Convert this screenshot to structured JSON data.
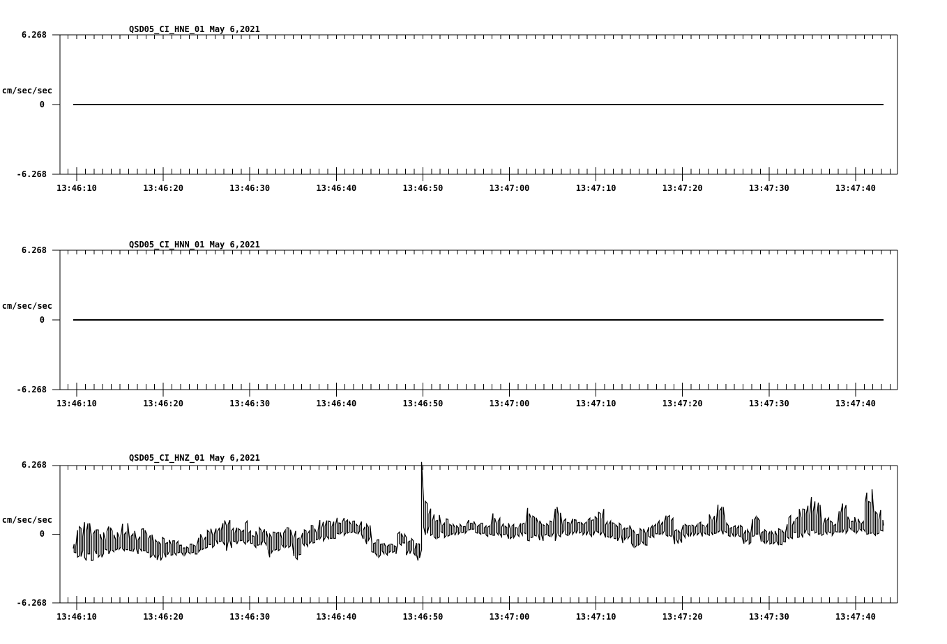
{
  "app": {
    "kind": "seismic waveform display",
    "background_color": "#ffffff",
    "foreground_color": "#000000"
  },
  "time_axis": {
    "tick_labels": [
      "13:46:10",
      "13:46:20",
      "13:46:30",
      "13:46:40",
      "13:46:50",
      "13:47:00",
      "13:47:10",
      "13:47:20",
      "13:47:30",
      "13:47:40"
    ],
    "tick_seconds": [
      0,
      10,
      20,
      30,
      40,
      50,
      60,
      70,
      80,
      90
    ],
    "minor_tick_interval_seconds": 1
  },
  "panels": [
    {
      "channel": "HNE",
      "title": "QSD05_CI_HNE_01  May 6,2021",
      "y_axis": {
        "top_label": "6.268",
        "zero_label": "0",
        "bottom_label": "-6.268",
        "units_label": "cm/sec/sec"
      }
    },
    {
      "channel": "HNN",
      "title": "QSD05_CI_HNN_01  May 6,2021",
      "y_axis": {
        "top_label": "6.268",
        "zero_label": "0",
        "bottom_label": "-6.268",
        "units_label": "cm/sec/sec"
      }
    },
    {
      "channel": "HNZ",
      "title": "QSD05_CI_HNZ_01  May 6,2021",
      "y_axis": {
        "top_label": "6.268",
        "zero_label": "0",
        "bottom_label": "-6.268",
        "units_label": "cm/sec/sec"
      }
    }
  ],
  "chart_data": [
    {
      "type": "line",
      "title": "QSD05_CI_HNE_01  May 6,2021",
      "ylabel": "cm/sec/sec",
      "ylim": [
        -6.268,
        6.268
      ],
      "yticks": [
        -6.268,
        0,
        6.268
      ],
      "x_tick_labels": [
        "13:46:10",
        "13:46:20",
        "13:46:30",
        "13:46:40",
        "13:46:50",
        "13:47:00",
        "13:47:10",
        "13:47:20",
        "13:47:30",
        "13:47:40"
      ],
      "x_start": "13:46:09.6",
      "x_end": "13:47:43.2",
      "series": [
        {
          "name": "HNE",
          "constant_value": 0
        }
      ]
    },
    {
      "type": "line",
      "title": "QSD05_CI_HNN_01  May 6,2021",
      "ylabel": "cm/sec/sec",
      "ylim": [
        -6.268,
        6.268
      ],
      "yticks": [
        -6.268,
        0,
        6.268
      ],
      "x_tick_labels": [
        "13:46:10",
        "13:46:20",
        "13:46:30",
        "13:46:40",
        "13:46:50",
        "13:47:00",
        "13:47:10",
        "13:47:20",
        "13:47:30",
        "13:47:40"
      ],
      "x_start": "13:46:09.6",
      "x_end": "13:47:43.2",
      "series": [
        {
          "name": "HNN",
          "constant_value": 0
        }
      ]
    },
    {
      "type": "line",
      "title": "QSD05_CI_HNZ_01  May 6,2021",
      "ylabel": "cm/sec/sec",
      "ylim": [
        -6.268,
        6.268
      ],
      "yticks": [
        -6.268,
        0,
        6.268
      ],
      "x_tick_labels": [
        "13:46:10",
        "13:46:20",
        "13:46:30",
        "13:46:40",
        "13:46:50",
        "13:47:00",
        "13:47:10",
        "13:47:20",
        "13:47:30",
        "13:47:40"
      ],
      "x_start": "13:46:09.6",
      "x_end": "13:47:43.2",
      "peak": {
        "seconds_after_13_46_10": 39.7,
        "value_cm_s2": 6.6
      },
      "envelope_columns": [
        "seconds_after_13:46:10",
        "min_cm_s2",
        "max_cm_s2",
        "mid_cm_s2"
      ],
      "envelope": [
        [
          -0.4,
          -1.7,
          -0.9,
          -1.3
        ],
        [
          0,
          -2.1,
          1.1,
          -1.2
        ],
        [
          1,
          -2.4,
          1.0,
          -1.2
        ],
        [
          2,
          -2.1,
          0.4,
          -1.1
        ],
        [
          3,
          -1.8,
          0.7,
          -1.1
        ],
        [
          4,
          -1.6,
          0.3,
          -1.0
        ],
        [
          5,
          -1.5,
          1.0,
          -0.9
        ],
        [
          6,
          -1.6,
          0.3,
          -1.0
        ],
        [
          7,
          -1.8,
          0.5,
          -1.0
        ],
        [
          8,
          -2.1,
          0.0,
          -1.2
        ],
        [
          9,
          -2.4,
          -0.3,
          -1.4
        ],
        [
          10,
          -2.1,
          -0.4,
          -1.3
        ],
        [
          11,
          -1.9,
          -0.6,
          -1.3
        ],
        [
          12,
          -1.9,
          -1.0,
          -1.4
        ],
        [
          13,
          -1.8,
          -0.9,
          -1.35
        ],
        [
          14,
          -1.6,
          0.0,
          -1.0
        ],
        [
          15,
          -1.2,
          0.5,
          -0.6
        ],
        [
          16,
          -0.9,
          1.0,
          -0.2
        ],
        [
          17,
          -1.5,
          1.3,
          -0.2
        ],
        [
          18,
          -0.9,
          0.6,
          -0.3
        ],
        [
          19,
          -0.9,
          1.2,
          -0.3
        ],
        [
          20,
          -1.2,
          0.3,
          -0.5
        ],
        [
          21,
          -1.0,
          0.6,
          -0.4
        ],
        [
          22,
          -2.1,
          0.2,
          -0.7
        ],
        [
          23,
          -1.5,
          0.2,
          -0.7
        ],
        [
          24,
          -1.2,
          0.6,
          -0.5
        ],
        [
          25,
          -2.3,
          0.3,
          -0.8
        ],
        [
          26,
          -1.1,
          0.4,
          -0.5
        ],
        [
          27,
          -0.8,
          0.8,
          -0.2
        ],
        [
          28,
          -0.6,
          1.3,
          0.1
        ],
        [
          29,
          -0.4,
          1.2,
          0.2
        ],
        [
          30,
          -0.1,
          1.5,
          0.5
        ],
        [
          31,
          0.1,
          1.3,
          0.6
        ],
        [
          32,
          0.0,
          1.2,
          0.5
        ],
        [
          33,
          -0.9,
          0.9,
          0.1
        ],
        [
          34,
          -2.1,
          -0.5,
          -1.1
        ],
        [
          35,
          -1.9,
          -0.8,
          -1.3
        ],
        [
          36,
          -1.8,
          -0.9,
          -1.3
        ],
        [
          37,
          -1.0,
          0.2,
          -0.5
        ],
        [
          38,
          -1.9,
          -0.3,
          -1.2
        ],
        [
          39,
          -2.4,
          -0.8,
          -1.6
        ],
        [
          39.7,
          -1.4,
          6.6,
          1.0
        ],
        [
          40,
          -0.1,
          3.0,
          1.2
        ],
        [
          41,
          -0.4,
          1.8,
          0.6
        ],
        [
          42,
          -0.3,
          1.4,
          0.5
        ],
        [
          43,
          -0.1,
          0.9,
          0.4
        ],
        [
          44,
          0.0,
          0.9,
          0.45
        ],
        [
          45,
          0.3,
          1.3,
          0.7
        ],
        [
          46,
          0.0,
          1.0,
          0.5
        ],
        [
          47,
          -0.2,
          0.9,
          0.4
        ],
        [
          48,
          -0.1,
          1.9,
          0.5
        ],
        [
          49,
          -0.4,
          1.0,
          0.3
        ],
        [
          50,
          -0.4,
          0.9,
          0.3
        ],
        [
          51,
          -0.2,
          1.0,
          0.4
        ],
        [
          52,
          -0.6,
          2.4,
          0.5
        ],
        [
          53,
          -0.6,
          1.5,
          0.4
        ],
        [
          54,
          -0.2,
          1.2,
          0.5
        ],
        [
          55,
          -0.6,
          2.5,
          0.5
        ],
        [
          56,
          -0.1,
          1.4,
          0.55
        ],
        [
          57,
          0.0,
          1.4,
          0.6
        ],
        [
          58,
          -0.1,
          1.1,
          0.5
        ],
        [
          59,
          -0.2,
          1.6,
          0.6
        ],
        [
          60,
          -0.1,
          2.3,
          0.7
        ],
        [
          61,
          -0.3,
          1.2,
          0.4
        ],
        [
          62,
          -0.6,
          1.0,
          0.3
        ],
        [
          63,
          -0.8,
          0.8,
          0.2
        ],
        [
          64,
          -1.2,
          0.4,
          -0.3
        ],
        [
          65,
          -1.0,
          0.5,
          -0.2
        ],
        [
          66,
          -0.3,
          0.9,
          0.3
        ],
        [
          67,
          0.0,
          1.2,
          0.5
        ],
        [
          68,
          -0.2,
          1.7,
          0.8
        ],
        [
          69,
          -0.9,
          0.4,
          -0.2
        ],
        [
          70,
          -0.3,
          0.9,
          0.3
        ],
        [
          71,
          -0.1,
          1.0,
          0.45
        ],
        [
          72,
          -0.2,
          1.1,
          0.4
        ],
        [
          73,
          -0.1,
          1.8,
          0.5
        ],
        [
          74,
          0.0,
          2.7,
          0.6
        ],
        [
          75,
          -0.2,
          1.0,
          0.3
        ],
        [
          76,
          -0.3,
          0.8,
          0.25
        ],
        [
          77,
          -0.9,
          0.4,
          -0.2
        ],
        [
          78,
          -0.2,
          1.6,
          0.5
        ],
        [
          79,
          -0.8,
          0.4,
          -0.3
        ],
        [
          80,
          -0.9,
          0.3,
          -0.35
        ],
        [
          81,
          -1.0,
          0.5,
          -0.3
        ],
        [
          82,
          -0.4,
          1.7,
          0.4
        ],
        [
          83,
          -0.3,
          2.3,
          0.6
        ],
        [
          84,
          -0.1,
          3.4,
          0.8
        ],
        [
          85,
          0.0,
          3.0,
          0.8
        ],
        [
          86,
          -0.1,
          1.5,
          0.5
        ],
        [
          87,
          -0.1,
          1.2,
          0.4
        ],
        [
          88,
          0.1,
          2.8,
          0.7
        ],
        [
          89,
          0.2,
          1.6,
          0.8
        ],
        [
          90,
          0.1,
          1.4,
          0.7
        ],
        [
          91,
          0.0,
          4.1,
          0.8
        ],
        [
          92,
          -0.1,
          2.2,
          0.7
        ],
        [
          93,
          0.3,
          1.3,
          0.8
        ],
        [
          93.3,
          0.5,
          1.1,
          0.8
        ]
      ]
    }
  ]
}
